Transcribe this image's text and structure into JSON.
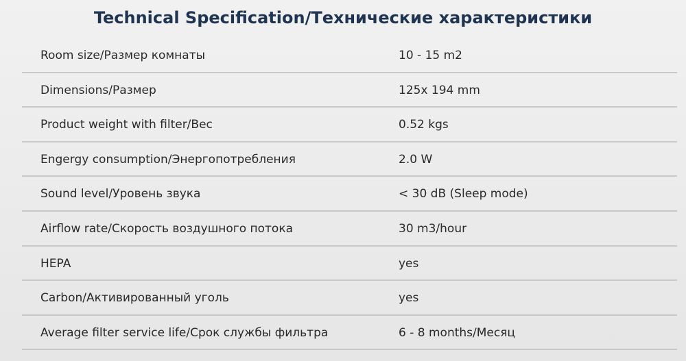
{
  "title": "Technical Specification/Технические характеристики",
  "table": {
    "rows": [
      [
        "Room size/Размер комнаты",
        "10 - 15 m2"
      ],
      [
        "Dimensions/Размер",
        "125x 194 mm"
      ],
      [
        "Product weight with filter/Вес",
        "0.52 kgs"
      ],
      [
        "Engergy consumption/Энергопотребления",
        "2.0 W"
      ],
      [
        "Sound level/Уровень звука",
        "< 30 dB (Sleep mode)"
      ],
      [
        "Airflow rate/Скорость воздушного потока",
        "30 m3/hour"
      ],
      [
        "HEPA",
        "yes"
      ],
      [
        "Carbon/Активированный уголь",
        "yes"
      ],
      [
        "Average filter service life/Срок службы фильтра",
        "6 - 8 months/Месяц"
      ]
    ]
  }
}
